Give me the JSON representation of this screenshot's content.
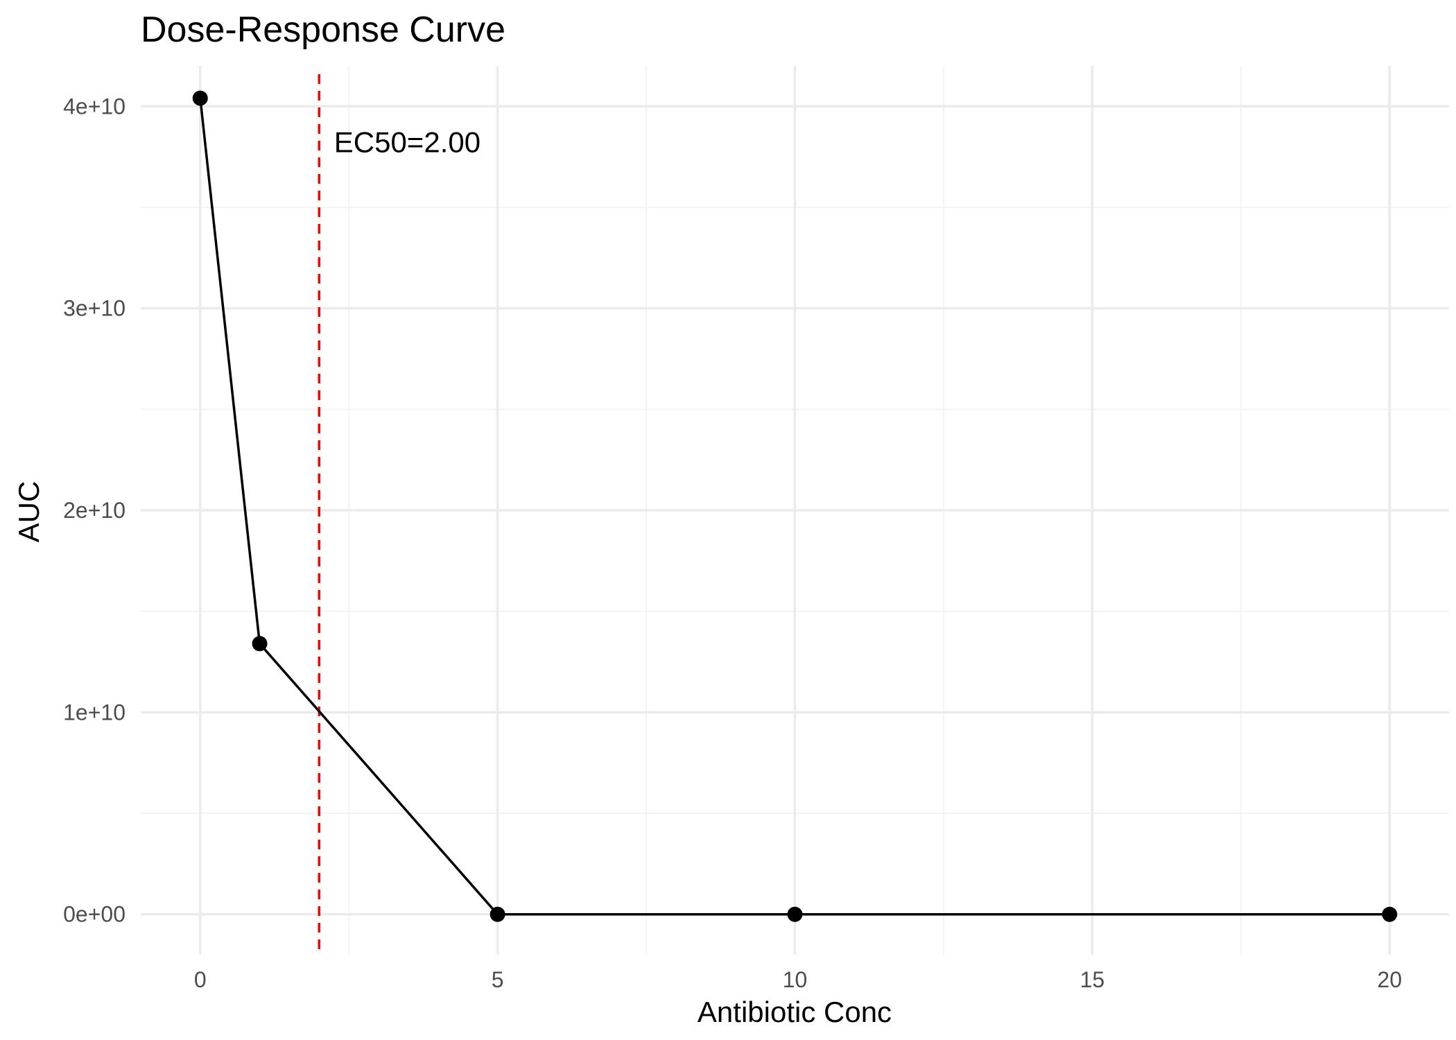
{
  "chart_data": {
    "type": "line",
    "title": "Dose-Response Curve",
    "xlabel": "Antibiotic Conc",
    "ylabel": "AUC",
    "xlim": [
      -1,
      21
    ],
    "ylim": [
      -2000000000.0,
      42000000000.0
    ],
    "x_ticks": [
      {
        "value": 0,
        "label": "0"
      },
      {
        "value": 5,
        "label": "5"
      },
      {
        "value": 10,
        "label": "10"
      },
      {
        "value": 15,
        "label": "15"
      },
      {
        "value": 20,
        "label": "20"
      }
    ],
    "y_ticks": [
      {
        "value": 0,
        "label": "0e+00"
      },
      {
        "value": 10000000000,
        "label": "1e+10"
      },
      {
        "value": 20000000000,
        "label": "2e+10"
      },
      {
        "value": 30000000000,
        "label": "3e+10"
      },
      {
        "value": 40000000000,
        "label": "4e+10"
      }
    ],
    "x_minor": [
      2.5,
      7.5,
      12.5,
      17.5
    ],
    "y_minor": [
      5000000000,
      15000000000,
      25000000000,
      35000000000
    ],
    "grid": true,
    "series": [
      {
        "color": "#000000",
        "x": [
          0,
          1,
          5,
          10,
          20
        ],
        "y": [
          40400000000,
          13400000000,
          0,
          0,
          0
        ]
      }
    ],
    "reference_line": {
      "orientation": "vertical",
      "x": 2,
      "color": "#ff0000",
      "style": "dashed"
    },
    "annotation": {
      "text": "EC50=2.00",
      "x": 2.25,
      "y": 38200000000
    },
    "colors": {
      "background": "#ffffff",
      "grid_major": "#ebebeb",
      "grid_minor": "#f3f3f3",
      "tick_label": "#4d4d4d"
    }
  }
}
